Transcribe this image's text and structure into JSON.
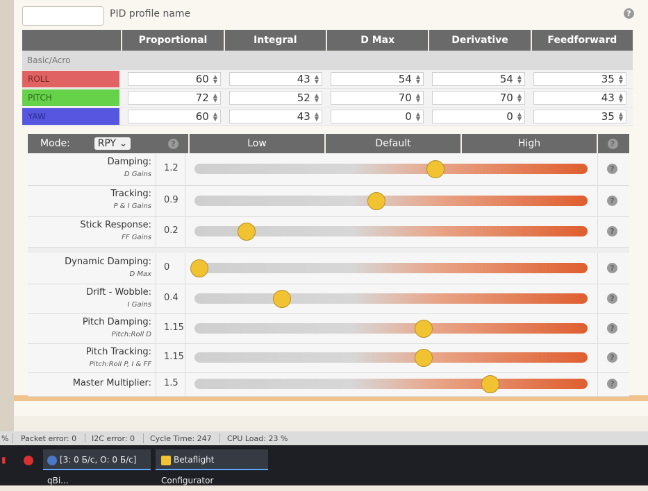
{
  "profile": {
    "input_value": "",
    "label": "PID profile name"
  },
  "pid": {
    "columns": [
      "Proportional",
      "Integral",
      "D Max",
      "Derivative",
      "Feedforward"
    ],
    "section_label": "Basic/Acro",
    "rows": [
      {
        "axis": "ROLL",
        "values": [
          "60",
          "43",
          "54",
          "54",
          "35"
        ]
      },
      {
        "axis": "PITCH",
        "values": [
          "72",
          "52",
          "70",
          "70",
          "43"
        ]
      },
      {
        "axis": "YAW",
        "values": [
          "60",
          "43",
          "0",
          "0",
          "35"
        ]
      }
    ]
  },
  "sliders": {
    "mode_label": "Mode:",
    "mode_value": "RPY",
    "headers": [
      "Low",
      "Default",
      "High"
    ],
    "rows": [
      {
        "label": "Damping:",
        "sublabel": "D Gains",
        "value": "1.2",
        "level": 0.6
      },
      {
        "label": "Tracking:",
        "sublabel": "P & I Gains",
        "value": "0.9",
        "level": 0.45
      },
      {
        "label": "Stick Response:",
        "sublabel": "FF Gains",
        "value": "0.2",
        "level": 0.12
      },
      {
        "label": "Dynamic Damping:",
        "sublabel": "D Max",
        "value": "0",
        "level": 0.0
      },
      {
        "label": "Drift - Wobble:",
        "sublabel": "I Gains",
        "value": "0.4",
        "level": 0.21
      },
      {
        "label": "Pitch Damping:",
        "sublabel": "Pitch:Roll D",
        "value": "1.15",
        "level": 0.57
      },
      {
        "label": "Pitch Tracking:",
        "sublabel": "Pitch:Roll P, I & FF",
        "value": "1.15",
        "level": 0.57
      },
      {
        "label": "Master Multiplier:",
        "sublabel": "",
        "value": "1.5",
        "level": 0.74
      }
    ]
  },
  "help_glyph": "?",
  "status": {
    "percent": "%",
    "packet_error": "Packet error: 0",
    "i2c_error": "I2C error: 0",
    "cycle_time": "Cycle Time: 247",
    "cpu_load": "CPU Load: 23 %"
  },
  "taskbar": {
    "task1": "[3: 0 Б/с, О: 0 Б/с] qBi...",
    "task2": "Betaflight Configurator"
  },
  "colors": {
    "roll": "#e06262",
    "pitch": "#66d24a",
    "yaw": "#5656e0",
    "knob": "#f1c232",
    "slider_high": "#df5e2f"
  }
}
